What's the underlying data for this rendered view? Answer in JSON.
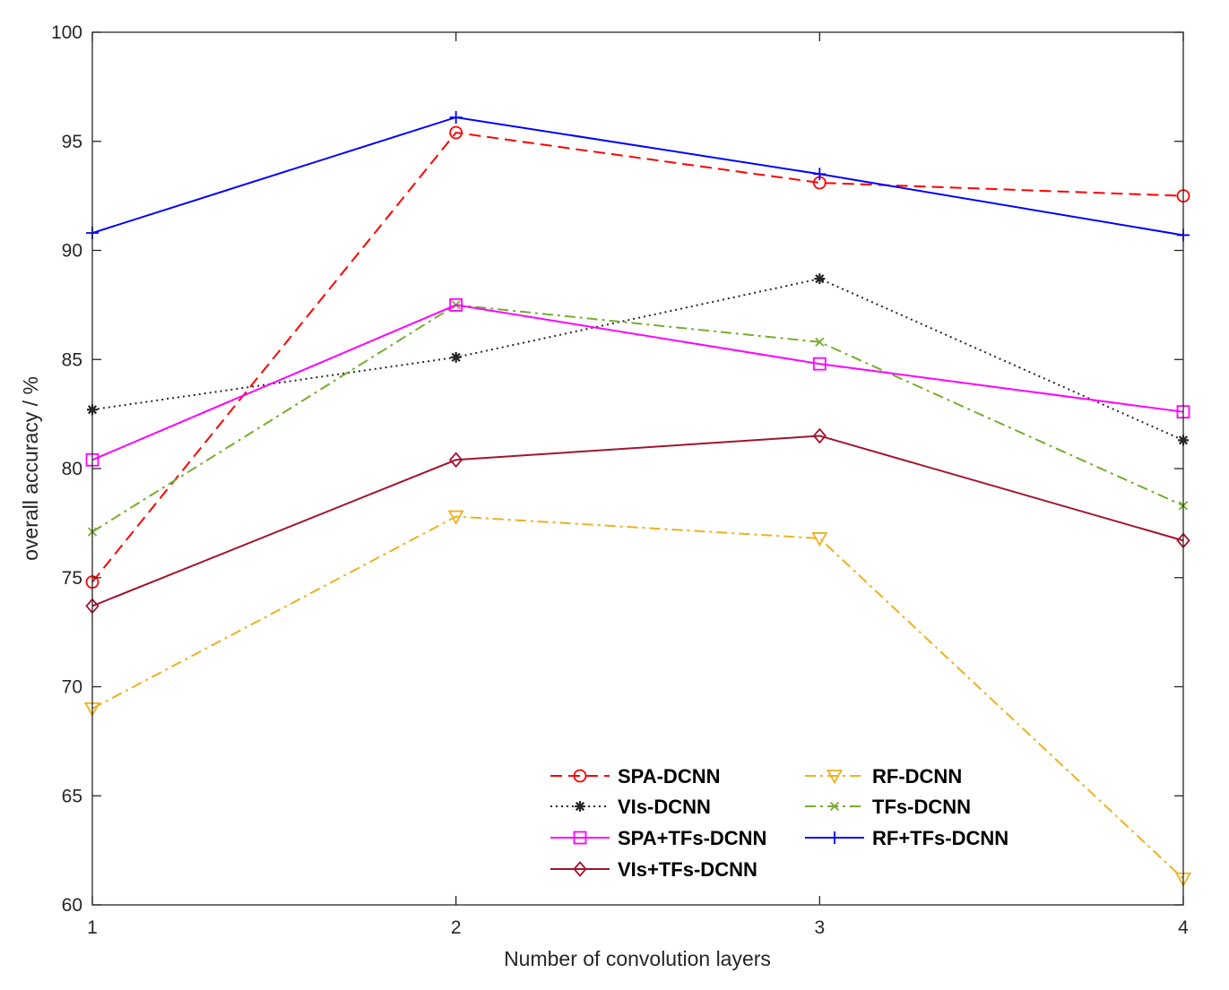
{
  "chart_data": {
    "type": "line",
    "title": "",
    "xlabel": "Number of convolution layers",
    "ylabel": "overall accuracy / %",
    "x": [
      1,
      2,
      3,
      4
    ],
    "xticks": [
      "1",
      "2",
      "3",
      "4"
    ],
    "xlim": [
      1,
      4
    ],
    "ylim": [
      60,
      100
    ],
    "yticks": [
      "60",
      "65",
      "70",
      "75",
      "80",
      "85",
      "90",
      "95",
      "100"
    ],
    "grid": false,
    "legend_position": "bottom-right",
    "series": [
      {
        "name": "SPA-DCNN",
        "color": "#ff0000",
        "dash": "dashed",
        "marker": "circle",
        "values": [
          74.8,
          95.4,
          93.1,
          92.5
        ]
      },
      {
        "name": "RF-DCNN",
        "color": "#edb120",
        "dash": "dashdot",
        "marker": "triangle-down",
        "values": [
          69.0,
          77.8,
          76.8,
          61.2
        ]
      },
      {
        "name": "VIs-DCNN",
        "color": "#262626",
        "dash": "dotted",
        "marker": "asterisk",
        "values": [
          82.7,
          85.1,
          88.7,
          81.3
        ]
      },
      {
        "name": "TFs-DCNN",
        "color": "#77ac30",
        "dash": "dashdot",
        "marker": "x",
        "values": [
          77.1,
          87.5,
          85.8,
          78.3
        ]
      },
      {
        "name": "SPA+TFs-DCNN",
        "color": "#ff00ff",
        "dash": "solid",
        "marker": "square",
        "values": [
          80.4,
          87.5,
          84.8,
          82.6
        ]
      },
      {
        "name": "RF+TFs-DCNN",
        "color": "#0000ff",
        "dash": "solid",
        "marker": "plus",
        "values": [
          90.8,
          96.1,
          93.5,
          90.7
        ]
      },
      {
        "name": "VIs+TFs-DCNN",
        "color": "#a2142f",
        "dash": "solid",
        "marker": "diamond",
        "values": [
          73.7,
          80.4,
          81.5,
          76.7
        ]
      }
    ]
  }
}
